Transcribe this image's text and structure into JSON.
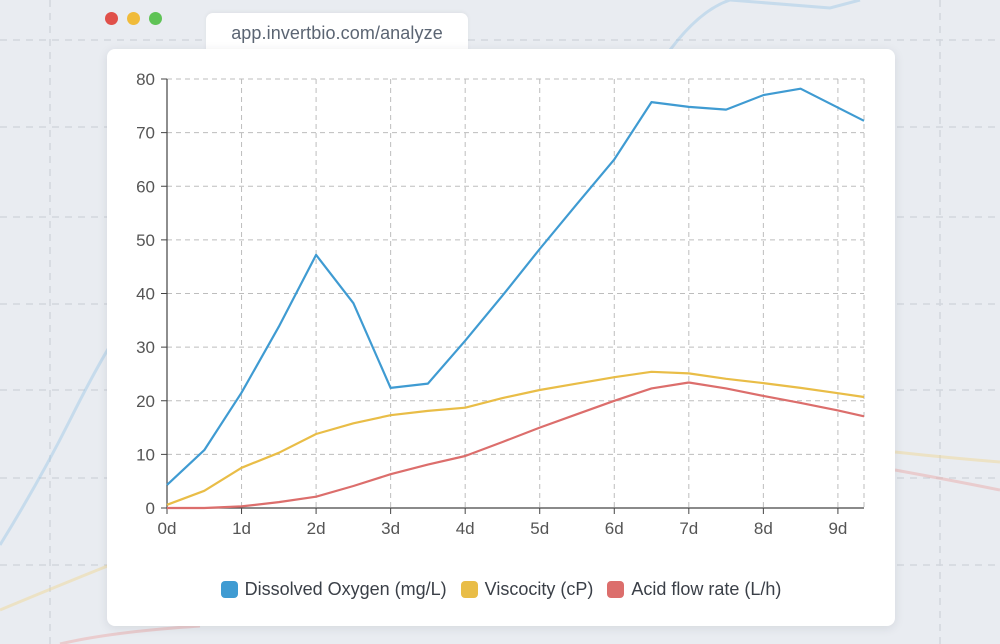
{
  "browser": {
    "url": "app.invertbio.com/analyze",
    "traffic_lights": [
      "#e0504a",
      "#f0bb3a",
      "#5fc356"
    ]
  },
  "colors": {
    "oxygen": "#3f9bd2",
    "viscosity": "#e9bd47",
    "acid": "#dc6e6c",
    "grid": "#bdbdbd",
    "axis": "#444444",
    "text": "#555555"
  },
  "chart_data": {
    "type": "line",
    "x_unit": "days",
    "x_ticks": [
      "0d",
      "1d",
      "2d",
      "3d",
      "4d",
      "5d",
      "6d",
      "7d",
      "8d",
      "9d"
    ],
    "xlim": [
      0,
      9.35
    ],
    "ylim": [
      0,
      80
    ],
    "y_ticks": [
      0,
      10,
      20,
      30,
      40,
      50,
      60,
      70,
      80
    ],
    "grid": true,
    "legend_position": "bottom-center",
    "series": [
      {
        "name": "Dissolved Oxygen (mg/L)",
        "color_key": "oxygen",
        "x": [
          0,
          0.5,
          1,
          1.5,
          2,
          2.5,
          3,
          3.5,
          4,
          4.5,
          5,
          5.5,
          6,
          6.5,
          7,
          7.5,
          8,
          8.5,
          9.35
        ],
        "y": [
          4.3,
          10.8,
          21.5,
          33.8,
          47.2,
          38.2,
          22.4,
          23.2,
          31.2,
          39.6,
          48.3,
          56.7,
          65,
          75.7,
          74.8,
          74.3,
          77,
          78.2,
          72.2
        ]
      },
      {
        "name": "Viscocity (cP)",
        "color_key": "viscosity",
        "x": [
          0,
          0.5,
          1,
          1.5,
          2,
          2.5,
          3,
          3.5,
          4,
          4.5,
          5,
          5.5,
          6,
          6.5,
          7,
          7.5,
          8,
          8.5,
          9,
          9.35
        ],
        "y": [
          0.6,
          3.2,
          7.5,
          10.3,
          13.8,
          15.8,
          17.3,
          18.1,
          18.7,
          20.5,
          22,
          23.2,
          24.4,
          25.4,
          25.1,
          24.1,
          23.3,
          22.4,
          21.4,
          20.7
        ]
      },
      {
        "name": "Acid flow rate (L/h)",
        "color_key": "acid",
        "x": [
          0,
          0.5,
          1,
          1.5,
          2,
          2.5,
          3,
          3.5,
          4,
          4.5,
          5,
          5.5,
          6,
          6.5,
          7,
          7.5,
          8,
          8.5,
          9,
          9.35
        ],
        "y": [
          0,
          0,
          0.3,
          1.1,
          2.1,
          4.1,
          6.3,
          8.1,
          9.7,
          12.3,
          15,
          17.5,
          20,
          22.3,
          23.4,
          22.3,
          20.9,
          19.6,
          18.2,
          17.1
        ]
      }
    ]
  }
}
